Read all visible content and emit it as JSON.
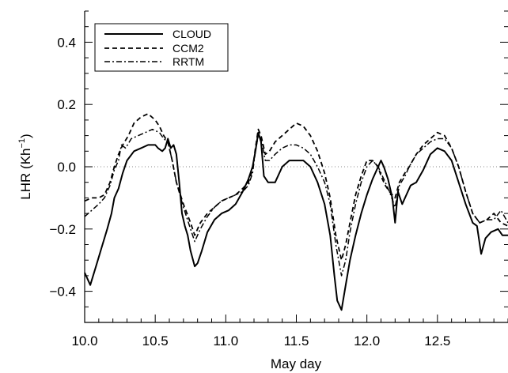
{
  "chart_data": {
    "type": "line",
    "title": "",
    "xlabel": "May day",
    "ylabel": "LHR (Kh",
    "ylabel_sup": "−1",
    "ylabel_close": ")",
    "xlim": [
      10.0,
      13.0
    ],
    "ylim": [
      -0.5,
      0.5
    ],
    "xticks": [
      10.0,
      10.5,
      11.0,
      11.5,
      12.0,
      12.5
    ],
    "xtick_labels": [
      "10.0",
      "10.5",
      "11.0",
      "11.5",
      "12.0",
      "12.5"
    ],
    "yticks": [
      -0.4,
      -0.2,
      0.0,
      0.2,
      0.4
    ],
    "ytick_labels": [
      "−0.4",
      "−0.2",
      "0.0",
      "0.2",
      "0.4"
    ],
    "zero_reference_line": true,
    "grid": false,
    "legend_position": "top-left",
    "series": [
      {
        "name": "CLOUD",
        "style": "solid",
        "color": "#000000",
        "points": [
          [
            10.0,
            -0.34
          ],
          [
            10.04,
            -0.38
          ],
          [
            10.08,
            -0.32
          ],
          [
            10.12,
            -0.26
          ],
          [
            10.16,
            -0.2
          ],
          [
            10.19,
            -0.15
          ],
          [
            10.21,
            -0.1
          ],
          [
            10.24,
            -0.07
          ],
          [
            10.27,
            -0.02
          ],
          [
            10.3,
            0.02
          ],
          [
            10.35,
            0.05
          ],
          [
            10.4,
            0.06
          ],
          [
            10.45,
            0.07
          ],
          [
            10.5,
            0.07
          ],
          [
            10.52,
            0.06
          ],
          [
            10.55,
            0.05
          ],
          [
            10.57,
            0.06
          ],
          [
            10.59,
            0.09
          ],
          [
            10.61,
            0.06
          ],
          [
            10.63,
            0.07
          ],
          [
            10.65,
            0.04
          ],
          [
            10.67,
            -0.05
          ],
          [
            10.69,
            -0.15
          ],
          [
            10.71,
            -0.19
          ],
          [
            10.73,
            -0.22
          ],
          [
            10.75,
            -0.27
          ],
          [
            10.78,
            -0.32
          ],
          [
            10.8,
            -0.31
          ],
          [
            10.83,
            -0.27
          ],
          [
            10.87,
            -0.21
          ],
          [
            10.92,
            -0.17
          ],
          [
            10.97,
            -0.15
          ],
          [
            11.02,
            -0.14
          ],
          [
            11.07,
            -0.12
          ],
          [
            11.12,
            -0.08
          ],
          [
            11.16,
            -0.04
          ],
          [
            11.19,
            0.0
          ],
          [
            11.21,
            0.05
          ],
          [
            11.23,
            0.11
          ],
          [
            11.25,
            0.08
          ],
          [
            11.27,
            -0.03
          ],
          [
            11.3,
            -0.05
          ],
          [
            11.35,
            -0.05
          ],
          [
            11.4,
            0.0
          ],
          [
            11.45,
            0.02
          ],
          [
            11.5,
            0.02
          ],
          [
            11.55,
            0.02
          ],
          [
            11.6,
            0.0
          ],
          [
            11.65,
            -0.05
          ],
          [
            11.7,
            -0.12
          ],
          [
            11.74,
            -0.22
          ],
          [
            11.77,
            -0.35
          ],
          [
            11.79,
            -0.43
          ],
          [
            11.82,
            -0.46
          ],
          [
            11.85,
            -0.38
          ],
          [
            11.88,
            -0.3
          ],
          [
            11.92,
            -0.22
          ],
          [
            11.96,
            -0.15
          ],
          [
            12.0,
            -0.09
          ],
          [
            12.04,
            -0.04
          ],
          [
            12.08,
            0.0
          ],
          [
            12.1,
            0.02
          ],
          [
            12.12,
            0.0
          ],
          [
            12.15,
            -0.04
          ],
          [
            12.18,
            -0.1
          ],
          [
            12.2,
            -0.18
          ],
          [
            12.22,
            -0.08
          ],
          [
            12.25,
            -0.12
          ],
          [
            12.28,
            -0.09
          ],
          [
            12.31,
            -0.06
          ],
          [
            12.35,
            -0.05
          ],
          [
            12.4,
            -0.01
          ],
          [
            12.45,
            0.04
          ],
          [
            12.5,
            0.06
          ],
          [
            12.55,
            0.05
          ],
          [
            12.6,
            0.02
          ],
          [
            12.65,
            -0.05
          ],
          [
            12.7,
            -0.12
          ],
          [
            12.75,
            -0.18
          ],
          [
            12.78,
            -0.19
          ],
          [
            12.81,
            -0.28
          ],
          [
            12.84,
            -0.23
          ],
          [
            12.88,
            -0.21
          ],
          [
            12.93,
            -0.2
          ],
          [
            12.96,
            -0.22
          ],
          [
            13.0,
            -0.22
          ]
        ]
      },
      {
        "name": "CCM2",
        "style": "dashed",
        "color": "#000000",
        "points": [
          [
            10.0,
            -0.11
          ],
          [
            10.05,
            -0.1
          ],
          [
            10.1,
            -0.1
          ],
          [
            10.14,
            -0.09
          ],
          [
            10.18,
            -0.05
          ],
          [
            10.21,
            0.0
          ],
          [
            10.24,
            0.04
          ],
          [
            10.27,
            0.07
          ],
          [
            10.31,
            0.1
          ],
          [
            10.35,
            0.14
          ],
          [
            10.4,
            0.16
          ],
          [
            10.45,
            0.17
          ],
          [
            10.5,
            0.15
          ],
          [
            10.53,
            0.13
          ],
          [
            10.56,
            0.1
          ],
          [
            10.59,
            0.08
          ],
          [
            10.62,
            0.02
          ],
          [
            10.65,
            -0.05
          ],
          [
            10.7,
            -0.12
          ],
          [
            10.75,
            -0.18
          ],
          [
            10.78,
            -0.22
          ],
          [
            10.82,
            -0.18
          ],
          [
            10.87,
            -0.15
          ],
          [
            10.92,
            -0.13
          ],
          [
            10.97,
            -0.11
          ],
          [
            11.02,
            -0.1
          ],
          [
            11.07,
            -0.09
          ],
          [
            11.12,
            -0.07
          ],
          [
            11.16,
            -0.05
          ],
          [
            11.19,
            -0.01
          ],
          [
            11.21,
            0.06
          ],
          [
            11.23,
            0.12
          ],
          [
            11.25,
            0.1
          ],
          [
            11.28,
            0.04
          ],
          [
            11.31,
            0.05
          ],
          [
            11.35,
            0.08
          ],
          [
            11.4,
            0.1
          ],
          [
            11.45,
            0.12
          ],
          [
            11.5,
            0.14
          ],
          [
            11.55,
            0.13
          ],
          [
            11.6,
            0.1
          ],
          [
            11.65,
            0.05
          ],
          [
            11.7,
            -0.02
          ],
          [
            11.74,
            -0.1
          ],
          [
            11.78,
            -0.22
          ],
          [
            11.82,
            -0.3
          ],
          [
            11.85,
            -0.25
          ],
          [
            11.88,
            -0.18
          ],
          [
            11.92,
            -0.09
          ],
          [
            11.96,
            -0.03
          ],
          [
            12.0,
            0.02
          ],
          [
            12.04,
            0.02
          ],
          [
            12.08,
            0.0
          ],
          [
            12.1,
            -0.03
          ],
          [
            12.13,
            -0.06
          ],
          [
            12.16,
            -0.08
          ],
          [
            12.2,
            -0.1
          ],
          [
            12.23,
            -0.05
          ],
          [
            12.27,
            -0.02
          ],
          [
            12.3,
            0.0
          ],
          [
            12.35,
            0.04
          ],
          [
            12.4,
            0.07
          ],
          [
            12.45,
            0.09
          ],
          [
            12.5,
            0.11
          ],
          [
            12.55,
            0.1
          ],
          [
            12.6,
            0.06
          ],
          [
            12.65,
            0.0
          ],
          [
            12.7,
            -0.08
          ],
          [
            12.75,
            -0.15
          ],
          [
            12.8,
            -0.18
          ],
          [
            12.85,
            -0.17
          ],
          [
            12.9,
            -0.15
          ],
          [
            12.95,
            -0.18
          ],
          [
            13.0,
            -0.19
          ]
        ]
      },
      {
        "name": "RRTM",
        "style": "dashdot",
        "color": "#000000",
        "points": [
          [
            10.0,
            -0.16
          ],
          [
            10.05,
            -0.14
          ],
          [
            10.1,
            -0.12
          ],
          [
            10.14,
            -0.1
          ],
          [
            10.18,
            -0.06
          ],
          [
            10.21,
            -0.01
          ],
          [
            10.24,
            0.02
          ],
          [
            10.26,
            0.07
          ],
          [
            10.29,
            0.06
          ],
          [
            10.33,
            0.09
          ],
          [
            10.38,
            0.1
          ],
          [
            10.43,
            0.11
          ],
          [
            10.48,
            0.12
          ],
          [
            10.53,
            0.11
          ],
          [
            10.56,
            0.09
          ],
          [
            10.59,
            0.08
          ],
          [
            10.62,
            0.02
          ],
          [
            10.65,
            -0.05
          ],
          [
            10.7,
            -0.13
          ],
          [
            10.75,
            -0.2
          ],
          [
            10.78,
            -0.24
          ],
          [
            10.82,
            -0.2
          ],
          [
            10.87,
            -0.16
          ],
          [
            10.92,
            -0.13
          ],
          [
            10.97,
            -0.11
          ],
          [
            11.02,
            -0.1
          ],
          [
            11.07,
            -0.09
          ],
          [
            11.12,
            -0.08
          ],
          [
            11.16,
            -0.06
          ],
          [
            11.19,
            -0.02
          ],
          [
            11.21,
            0.05
          ],
          [
            11.23,
            0.1
          ],
          [
            11.25,
            0.09
          ],
          [
            11.28,
            0.02
          ],
          [
            11.31,
            0.02
          ],
          [
            11.35,
            0.04
          ],
          [
            11.4,
            0.06
          ],
          [
            11.45,
            0.07
          ],
          [
            11.5,
            0.07
          ],
          [
            11.55,
            0.06
          ],
          [
            11.6,
            0.04
          ],
          [
            11.65,
            0.0
          ],
          [
            11.7,
            -0.05
          ],
          [
            11.74,
            -0.12
          ],
          [
            11.78,
            -0.25
          ],
          [
            11.82,
            -0.35
          ],
          [
            11.85,
            -0.3
          ],
          [
            11.88,
            -0.21
          ],
          [
            11.92,
            -0.12
          ],
          [
            11.96,
            -0.05
          ],
          [
            12.0,
            0.0
          ],
          [
            12.04,
            0.02
          ],
          [
            12.08,
            0.0
          ],
          [
            12.1,
            -0.02
          ],
          [
            12.13,
            -0.05
          ],
          [
            12.16,
            -0.08
          ],
          [
            12.2,
            -0.13
          ],
          [
            12.23,
            -0.06
          ],
          [
            12.27,
            -0.03
          ],
          [
            12.3,
            0.0
          ],
          [
            12.35,
            0.04
          ],
          [
            12.4,
            0.06
          ],
          [
            12.45,
            0.08
          ],
          [
            12.5,
            0.09
          ],
          [
            12.55,
            0.09
          ],
          [
            12.6,
            0.06
          ],
          [
            12.65,
            0.0
          ],
          [
            12.7,
            -0.08
          ],
          [
            12.75,
            -0.15
          ],
          [
            12.8,
            -0.18
          ],
          [
            12.85,
            -0.17
          ],
          [
            12.9,
            -0.17
          ],
          [
            12.95,
            -0.14
          ],
          [
            13.0,
            -0.18
          ]
        ]
      }
    ]
  }
}
